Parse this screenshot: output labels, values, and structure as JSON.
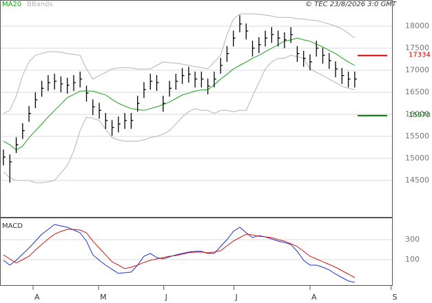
{
  "chart_data": [
    {
      "type": "stock",
      "source": "© TEC 23/8/2026 3:0 GMT",
      "categories": [
        null,
        null,
        null,
        null,
        null,
        null,
        null,
        null,
        null,
        null,
        null,
        null,
        null,
        null,
        null,
        null,
        null,
        null,
        null,
        null,
        null,
        null,
        null,
        null,
        null,
        null,
        null,
        null,
        null,
        null,
        null,
        null,
        null,
        null,
        null,
        null,
        null,
        null,
        null,
        null,
        null,
        null,
        null,
        null,
        null,
        null,
        null,
        null,
        null,
        null,
        null,
        null,
        null,
        null,
        null,
        null
      ],
      "xlim": [
        -0.54,
        60.95
      ],
      "ylim": [
        13672,
        18594
      ],
      "yticks": [
        14500,
        15000,
        15500,
        16000,
        16500,
        17000,
        17500,
        18000
      ],
      "grid": true,
      "color": "#000000",
      "close": [
        15030,
        14920,
        15310,
        15630,
        16020,
        16330,
        16590,
        16720,
        16750,
        16690,
        16660,
        16720,
        16800,
        16480,
        16170,
        16090,
        15860,
        15700,
        15780,
        15860,
        15860,
        16250,
        16560,
        16750,
        16720,
        16250,
        16590,
        16750,
        16880,
        16910,
        16800,
        16800,
        16640,
        16800,
        17110,
        17380,
        17730,
        18050,
        17890,
        17500,
        17580,
        17730,
        17810,
        17730,
        17690,
        17810,
        17380,
        17270,
        17190,
        17500,
        17340,
        17220,
        17030,
        16880,
        16800,
        16800
      ],
      "high": [
        15200,
        15090,
        15480,
        15800,
        16190,
        16500,
        16760,
        16890,
        16920,
        16860,
        16830,
        16890,
        16970,
        16650,
        16340,
        16260,
        16030,
        15870,
        15950,
        16030,
        16030,
        16420,
        16730,
        16920,
        16890,
        16420,
        16760,
        16920,
        17050,
        17080,
        16970,
        16970,
        16810,
        16970,
        17280,
        17550,
        17900,
        18250,
        18060,
        17670,
        17750,
        17900,
        17980,
        17900,
        17860,
        17980,
        17550,
        17440,
        17360,
        17670,
        17510,
        17390,
        17200,
        17050,
        16970,
        16970
      ],
      "low": [
        14840,
        14450,
        15120,
        15440,
        15830,
        16140,
        16400,
        16530,
        16560,
        16500,
        16470,
        16530,
        16610,
        16290,
        15980,
        15900,
        15670,
        15510,
        15590,
        15670,
        15670,
        16060,
        16370,
        16560,
        16530,
        16060,
        16400,
        16560,
        16690,
        16720,
        16610,
        16610,
        16450,
        16610,
        16920,
        17190,
        17540,
        17860,
        17700,
        17310,
        17390,
        17540,
        17620,
        17540,
        17500,
        17620,
        17190,
        17080,
        17000,
        17310,
        17150,
        17030,
        16840,
        16690,
        16610,
        16610
      ],
      "series": [
        {
          "name": "MA20",
          "color": "#1aa01a",
          "values": [
            15390,
            15310,
            15190,
            15280,
            15470,
            15630,
            15780,
            15940,
            16090,
            16230,
            16380,
            16450,
            16530,
            16530,
            16530,
            16480,
            16440,
            16340,
            16250,
            16190,
            16130,
            16110,
            16090,
            16130,
            16170,
            16220,
            16280,
            16360,
            16440,
            16480,
            16530,
            16550,
            16560,
            16670,
            16800,
            16910,
            17030,
            17110,
            17190,
            17270,
            17340,
            17420,
            17500,
            17580,
            17660,
            17690,
            17730,
            17690,
            17660,
            17590,
            17530,
            17450,
            17380,
            17280,
            17190,
            17110
          ]
        },
        {
          "name": "BBands",
          "color": "#b4b4b4",
          "values": [
            16020,
            16090,
            16410,
            16880,
            17190,
            17340,
            17380,
            17420,
            17420,
            17410,
            17380,
            17360,
            17340,
            17030,
            16800,
            16880,
            16950,
            17030,
            17050,
            17060,
            17050,
            17030,
            17030,
            17030,
            17110,
            17190,
            17170,
            17160,
            17140,
            17110,
            17080,
            17060,
            17030,
            17190,
            17340,
            17810,
            18160,
            18280,
            18280,
            18280,
            18270,
            18250,
            18230,
            18200,
            18200,
            18200,
            18170,
            18160,
            18140,
            18130,
            18090,
            18050,
            18000,
            17940,
            17840,
            17730
          ],
          "lower": [
            14690,
            14560,
            14500,
            14500,
            14500,
            14450,
            14450,
            14470,
            14500,
            14670,
            14840,
            15160,
            15630,
            15940,
            15910,
            15860,
            15660,
            15470,
            15420,
            15390,
            15390,
            15390,
            15420,
            15470,
            15500,
            15550,
            15630,
            15780,
            15940,
            16060,
            16130,
            16090,
            16090,
            16020,
            16090,
            16090,
            16060,
            16090,
            16090,
            16410,
            16720,
            17030,
            17190,
            17270,
            17270,
            17340,
            17310,
            17270,
            17030,
            16950,
            16880,
            16800,
            16720,
            16640,
            16590,
            16560
          ]
        }
      ],
      "levels": [
        {
          "value": 17334,
          "color": "#cc0000"
        },
        {
          "value": 15970,
          "color": "#008000"
        }
      ]
    },
    {
      "type": "line",
      "title": "MACD",
      "xlim": [
        -0.54,
        60.95
      ],
      "xticks": [
        {
          "value": 4.64,
          "label": "A"
        },
        {
          "value": 14.9,
          "label": "M"
        },
        {
          "value": 25.1,
          "label": "J"
        },
        {
          "value": 36.1,
          "label": "J"
        },
        {
          "value": 48.0,
          "label": "A"
        },
        {
          "value": 60.7,
          "label": "S"
        }
      ],
      "ylim": [
        -162,
        514
      ],
      "yticks": [
        100,
        300
      ],
      "grid": true,
      "series": [
        {
          "color": "#1f2fd0",
          "values": [
            93,
            45,
            93,
            155,
            217,
            286,
            355,
            403,
            452,
            438,
            424,
            397,
            369,
            286,
            148,
            93,
            45,
            3,
            -38,
            -31,
            -24,
            45,
            134,
            162,
            121,
            107,
            128,
            148,
            162,
            176,
            183,
            183,
            162,
            162,
            231,
            300,
            383,
            424,
            369,
            321,
            341,
            328,
            307,
            286,
            272,
            252,
            183,
            93,
            45,
            45,
            24,
            -3,
            -45,
            -79,
            -114,
            -128
          ]
        },
        {
          "color": "#d01818",
          "values": [
            148,
            107,
            66,
            100,
            134,
            197,
            252,
            307,
            355,
            383,
            403,
            403,
            397,
            369,
            286,
            217,
            148,
            79,
            45,
            10,
            24,
            45,
            72,
            93,
            107,
            121,
            134,
            141,
            155,
            169,
            176,
            176,
            169,
            176,
            190,
            238,
            286,
            321,
            355,
            348,
            334,
            328,
            321,
            300,
            286,
            259,
            231,
            183,
            134,
            107,
            79,
            52,
            24,
            -10,
            -45,
            -79
          ]
        }
      ]
    }
  ]
}
